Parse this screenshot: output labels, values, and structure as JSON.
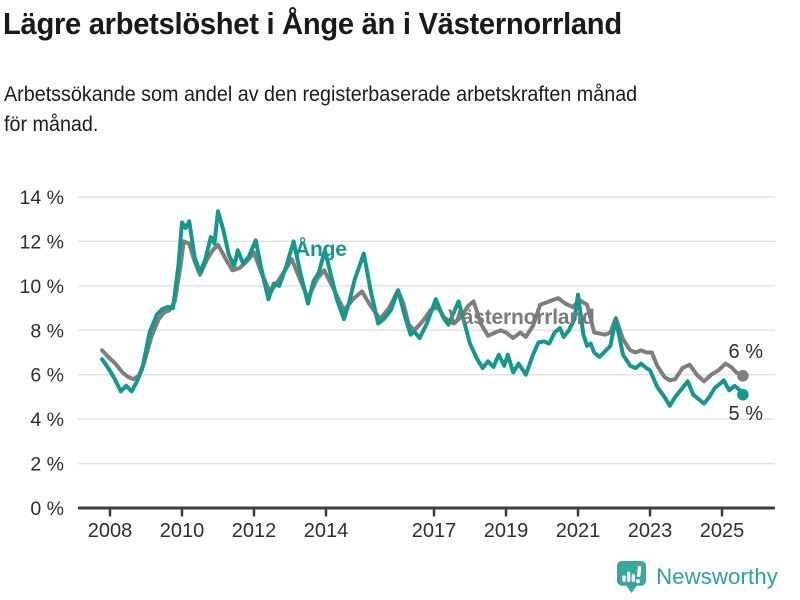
{
  "header": {
    "title": "Lägre arbetslöshet i Ånge än i Västernorrland",
    "subtitle": "Arbetssökande som andel av den registerbaserade arbetskraften månad\nför månad."
  },
  "chart_data": {
    "type": "line",
    "title": "Lägre arbetslöshet i Ånge än i Västernorrland",
    "ylabel": "",
    "xlabel": "",
    "ylim": [
      0,
      14
    ],
    "y_unit": "%",
    "grid": "horizontal",
    "legend_position": "inline-labels",
    "x_axis": {
      "range": [
        2007.78,
        2025.58
      ],
      "tick_values": [
        2008,
        2010,
        2012,
        2014,
        2017,
        2019,
        2021,
        2023,
        2025
      ],
      "tick_labels": [
        "2008",
        "2010",
        "2012",
        "2014",
        "2017",
        "2019",
        "2021",
        "2023",
        "2025"
      ]
    },
    "y_axis": {
      "range": [
        0,
        14
      ],
      "tick_values": [
        0,
        2,
        4,
        6,
        8,
        10,
        12,
        14
      ],
      "tick_labels": [
        "0 %",
        "2 %",
        "4 %",
        "6 %",
        "8 %",
        "10 %",
        "12 %",
        "14 %"
      ]
    },
    "series": [
      {
        "id": "vasternorrland",
        "name": "Västernorrland",
        "color": "#7e7e7e",
        "end_label": "6 %",
        "end_value": 6,
        "points": [
          [
            2007.78,
            7.1
          ],
          [
            2007.95,
            6.8
          ],
          [
            2008.15,
            6.5
          ],
          [
            2008.35,
            6.1
          ],
          [
            2008.5,
            5.9
          ],
          [
            2008.65,
            5.8
          ],
          [
            2008.8,
            5.95
          ],
          [
            2008.95,
            6.55
          ],
          [
            2009.15,
            7.7
          ],
          [
            2009.35,
            8.5
          ],
          [
            2009.5,
            8.8
          ],
          [
            2009.65,
            8.9
          ],
          [
            2009.8,
            9.3
          ],
          [
            2009.95,
            10.8
          ],
          [
            2010.05,
            12.0
          ],
          [
            2010.2,
            11.9
          ],
          [
            2010.35,
            11.1
          ],
          [
            2010.5,
            10.5
          ],
          [
            2010.7,
            11.2
          ],
          [
            2010.85,
            11.6
          ],
          [
            2011.0,
            11.85
          ],
          [
            2011.2,
            11.25
          ],
          [
            2011.4,
            10.7
          ],
          [
            2011.6,
            10.8
          ],
          [
            2011.8,
            11.1
          ],
          [
            2012.0,
            11.5
          ],
          [
            2012.2,
            10.6
          ],
          [
            2012.45,
            9.7
          ],
          [
            2012.7,
            10.3
          ],
          [
            2012.9,
            10.8
          ],
          [
            2013.05,
            11.2
          ],
          [
            2013.3,
            10.2
          ],
          [
            2013.5,
            9.45
          ],
          [
            2013.75,
            10.3
          ],
          [
            2013.95,
            10.7
          ],
          [
            2014.2,
            9.9
          ],
          [
            2014.5,
            8.9
          ],
          [
            2014.75,
            9.4
          ],
          [
            2015.0,
            9.75
          ],
          [
            2015.2,
            9.2
          ],
          [
            2015.5,
            8.5
          ],
          [
            2015.75,
            9.0
          ],
          [
            2016.0,
            9.8
          ],
          [
            2016.15,
            9.2
          ],
          [
            2016.3,
            8.25
          ],
          [
            2016.45,
            8.0
          ],
          [
            2016.6,
            8.25
          ],
          [
            2016.75,
            8.55
          ],
          [
            2016.9,
            8.9
          ],
          [
            2017.1,
            9.05
          ],
          [
            2017.3,
            8.55
          ],
          [
            2017.55,
            8.3
          ],
          [
            2017.75,
            8.6
          ],
          [
            2017.95,
            9.1
          ],
          [
            2018.1,
            9.3
          ],
          [
            2018.3,
            8.3
          ],
          [
            2018.5,
            7.75
          ],
          [
            2018.7,
            7.9
          ],
          [
            2018.85,
            8.0
          ],
          [
            2019.0,
            7.9
          ],
          [
            2019.2,
            7.65
          ],
          [
            2019.4,
            7.9
          ],
          [
            2019.55,
            7.7
          ],
          [
            2019.75,
            8.2
          ],
          [
            2019.95,
            9.15
          ],
          [
            2020.2,
            9.3
          ],
          [
            2020.45,
            9.45
          ],
          [
            2020.65,
            9.2
          ],
          [
            2020.85,
            9.05
          ],
          [
            2021.05,
            9.35
          ],
          [
            2021.25,
            9.15
          ],
          [
            2021.45,
            7.9
          ],
          [
            2021.6,
            7.85
          ],
          [
            2021.75,
            7.8
          ],
          [
            2021.9,
            7.9
          ],
          [
            2022.05,
            8.55
          ],
          [
            2022.25,
            7.6
          ],
          [
            2022.45,
            7.1
          ],
          [
            2022.6,
            7.0
          ],
          [
            2022.75,
            7.1
          ],
          [
            2022.9,
            7.0
          ],
          [
            2023.05,
            7.0
          ],
          [
            2023.2,
            6.4
          ],
          [
            2023.4,
            5.9
          ],
          [
            2023.55,
            5.75
          ],
          [
            2023.7,
            5.8
          ],
          [
            2023.9,
            6.3
          ],
          [
            2024.1,
            6.45
          ],
          [
            2024.3,
            6.0
          ],
          [
            2024.5,
            5.7
          ],
          [
            2024.7,
            6.0
          ],
          [
            2024.9,
            6.2
          ],
          [
            2025.1,
            6.5
          ],
          [
            2025.25,
            6.35
          ],
          [
            2025.4,
            6.1
          ],
          [
            2025.58,
            5.95
          ]
        ]
      },
      {
        "id": "ange",
        "name": "Ånge",
        "color": "#13998b",
        "end_label": "5 %",
        "end_value": 5,
        "points": [
          [
            2007.78,
            6.7
          ],
          [
            2007.95,
            6.3
          ],
          [
            2008.1,
            5.9
          ],
          [
            2008.3,
            5.25
          ],
          [
            2008.45,
            5.5
          ],
          [
            2008.6,
            5.25
          ],
          [
            2008.75,
            5.7
          ],
          [
            2008.9,
            6.3
          ],
          [
            2009.1,
            7.9
          ],
          [
            2009.3,
            8.7
          ],
          [
            2009.45,
            8.95
          ],
          [
            2009.6,
            9.05
          ],
          [
            2009.75,
            9.0
          ],
          [
            2009.9,
            10.9
          ],
          [
            2010.0,
            12.85
          ],
          [
            2010.1,
            12.6
          ],
          [
            2010.2,
            12.9
          ],
          [
            2010.35,
            11.3
          ],
          [
            2010.5,
            10.6
          ],
          [
            2010.65,
            11.2
          ],
          [
            2010.8,
            12.2
          ],
          [
            2010.9,
            11.9
          ],
          [
            2011.0,
            13.35
          ],
          [
            2011.15,
            12.5
          ],
          [
            2011.3,
            11.4
          ],
          [
            2011.45,
            10.9
          ],
          [
            2011.55,
            11.6
          ],
          [
            2011.7,
            11.0
          ],
          [
            2011.85,
            11.3
          ],
          [
            2012.05,
            12.05
          ],
          [
            2012.2,
            10.8
          ],
          [
            2012.4,
            9.4
          ],
          [
            2012.55,
            10.1
          ],
          [
            2012.7,
            10.0
          ],
          [
            2012.9,
            10.9
          ],
          [
            2013.1,
            12.0
          ],
          [
            2013.3,
            10.5
          ],
          [
            2013.5,
            9.2
          ],
          [
            2013.65,
            10.2
          ],
          [
            2013.8,
            10.6
          ],
          [
            2013.97,
            11.6
          ],
          [
            2014.15,
            10.4
          ],
          [
            2014.3,
            9.4
          ],
          [
            2014.5,
            8.5
          ],
          [
            2014.65,
            9.3
          ],
          [
            2014.8,
            10.3
          ],
          [
            2015.05,
            11.45
          ],
          [
            2015.25,
            9.7
          ],
          [
            2015.45,
            8.3
          ],
          [
            2015.6,
            8.5
          ],
          [
            2015.8,
            8.9
          ],
          [
            2016.0,
            9.8
          ],
          [
            2016.2,
            8.6
          ],
          [
            2016.35,
            7.8
          ],
          [
            2016.45,
            7.95
          ],
          [
            2016.6,
            7.65
          ],
          [
            2016.8,
            8.3
          ],
          [
            2017.05,
            9.4
          ],
          [
            2017.25,
            8.6
          ],
          [
            2017.4,
            8.25
          ],
          [
            2017.55,
            8.8
          ],
          [
            2017.68,
            9.3
          ],
          [
            2017.85,
            8.3
          ],
          [
            2018.0,
            7.4
          ],
          [
            2018.2,
            6.7
          ],
          [
            2018.35,
            6.3
          ],
          [
            2018.5,
            6.6
          ],
          [
            2018.65,
            6.35
          ],
          [
            2018.8,
            6.9
          ],
          [
            2018.95,
            6.4
          ],
          [
            2019.05,
            6.9
          ],
          [
            2019.2,
            6.1
          ],
          [
            2019.35,
            6.5
          ],
          [
            2019.55,
            6.0
          ],
          [
            2019.75,
            6.9
          ],
          [
            2019.9,
            7.45
          ],
          [
            2020.05,
            7.5
          ],
          [
            2020.2,
            7.4
          ],
          [
            2020.35,
            7.9
          ],
          [
            2020.5,
            8.1
          ],
          [
            2020.6,
            7.7
          ],
          [
            2020.75,
            8.0
          ],
          [
            2020.9,
            8.5
          ],
          [
            2021.0,
            9.6
          ],
          [
            2021.15,
            7.8
          ],
          [
            2021.25,
            7.3
          ],
          [
            2021.35,
            7.4
          ],
          [
            2021.45,
            7.0
          ],
          [
            2021.6,
            6.8
          ],
          [
            2021.75,
            7.05
          ],
          [
            2021.9,
            7.3
          ],
          [
            2022.05,
            8.5
          ],
          [
            2022.25,
            6.9
          ],
          [
            2022.45,
            6.4
          ],
          [
            2022.6,
            6.3
          ],
          [
            2022.75,
            6.5
          ],
          [
            2022.9,
            6.3
          ],
          [
            2023.0,
            6.2
          ],
          [
            2023.2,
            5.45
          ],
          [
            2023.4,
            5.0
          ],
          [
            2023.55,
            4.6
          ],
          [
            2023.7,
            5.0
          ],
          [
            2023.85,
            5.3
          ],
          [
            2024.05,
            5.7
          ],
          [
            2024.2,
            5.1
          ],
          [
            2024.35,
            4.9
          ],
          [
            2024.5,
            4.7
          ],
          [
            2024.65,
            5.0
          ],
          [
            2024.8,
            5.4
          ],
          [
            2024.95,
            5.6
          ],
          [
            2025.05,
            5.75
          ],
          [
            2025.2,
            5.3
          ],
          [
            2025.35,
            5.5
          ],
          [
            2025.5,
            5.3
          ],
          [
            2025.58,
            5.1
          ]
        ]
      }
    ],
    "colors": {
      "ange": "#13998b",
      "vasternorrland": "#7e7e7e",
      "grid": "#e3e3e3",
      "axis": "#3c3c3c",
      "tick_text": "#2f2f2f"
    }
  },
  "footer": {
    "brand": "Newsworthy",
    "brand_color": "#2aa398"
  }
}
